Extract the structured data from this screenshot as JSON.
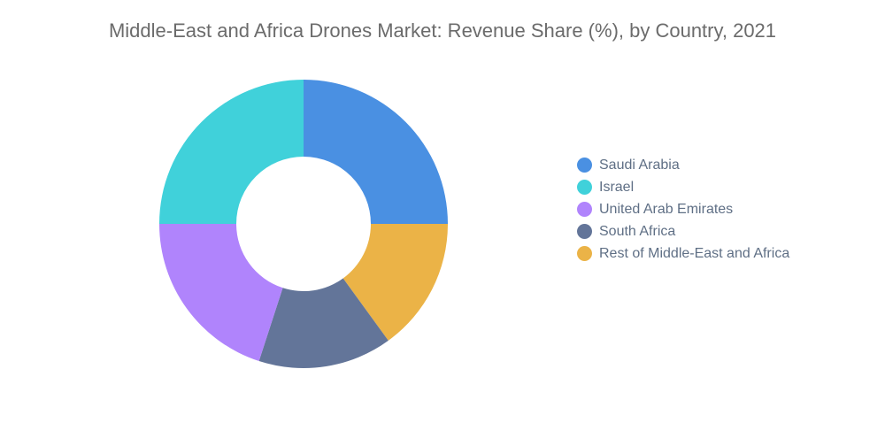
{
  "chart_data": {
    "type": "pie",
    "variant": "donut",
    "title": "Middle-East and Africa Drones Market: Revenue Share (%), by Country, 2021",
    "categories": [
      "Saudi Arabia",
      "Israel",
      "United Arab Emirates",
      "South Africa",
      "Rest of Middle-East and Africa"
    ],
    "values": [
      25,
      25,
      20,
      15,
      15
    ],
    "colors": [
      "#4a90e2",
      "#40d1da",
      "#b084fc",
      "#637599",
      "#ebb347"
    ],
    "draw_order": [
      0,
      4,
      3,
      2,
      1
    ],
    "legend_position": "right"
  }
}
